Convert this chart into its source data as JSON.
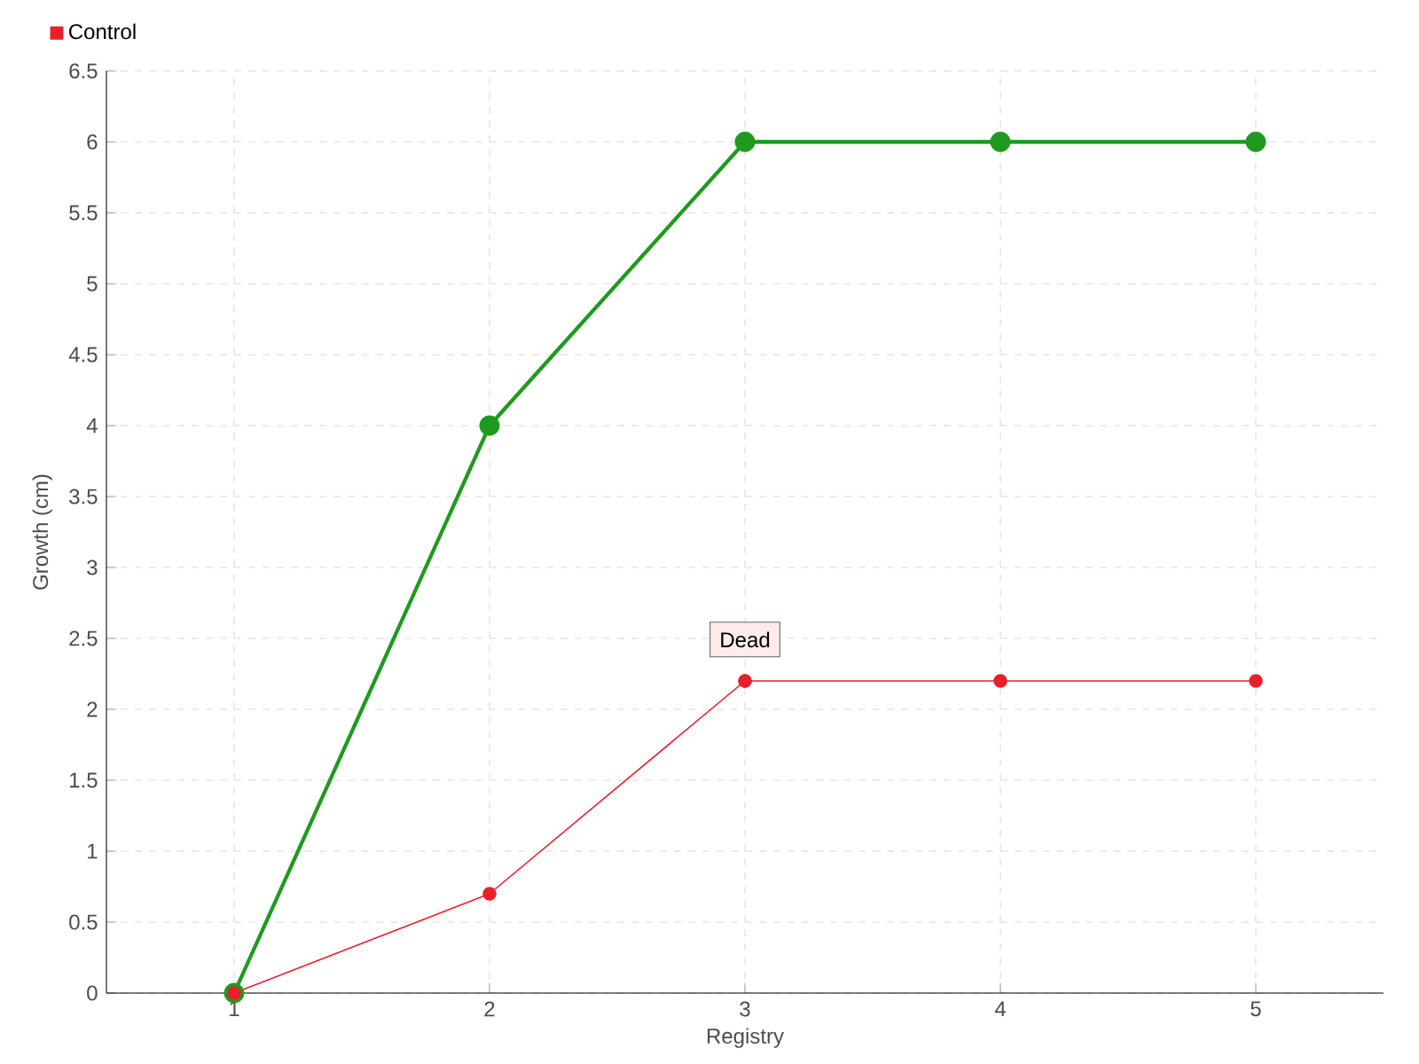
{
  "chart_data": {
    "type": "line",
    "xlabel": "Registry",
    "ylabel": "Growth (cm)",
    "categories": [
      "1",
      "2",
      "3",
      "4",
      "5"
    ],
    "series": [
      {
        "color": "#1f9a1f",
        "values": [
          0,
          4,
          6,
          6,
          6
        ]
      },
      {
        "name": "Control",
        "color": "#e8202c",
        "values": [
          0,
          0.7,
          2.2,
          2.2,
          2.2
        ]
      }
    ],
    "ylim": [
      0,
      6.5
    ],
    "yticks": [
      0,
      0.5,
      1,
      1.5,
      2,
      2.5,
      3,
      3.5,
      4,
      4.5,
      5,
      5.5,
      6,
      6.5
    ],
    "annotations": [
      {
        "text": "Dead",
        "x": "3",
        "y": 2.2
      }
    ],
    "grid": true,
    "legend": "top left",
    "marker": "circle",
    "line_style": "solid"
  }
}
